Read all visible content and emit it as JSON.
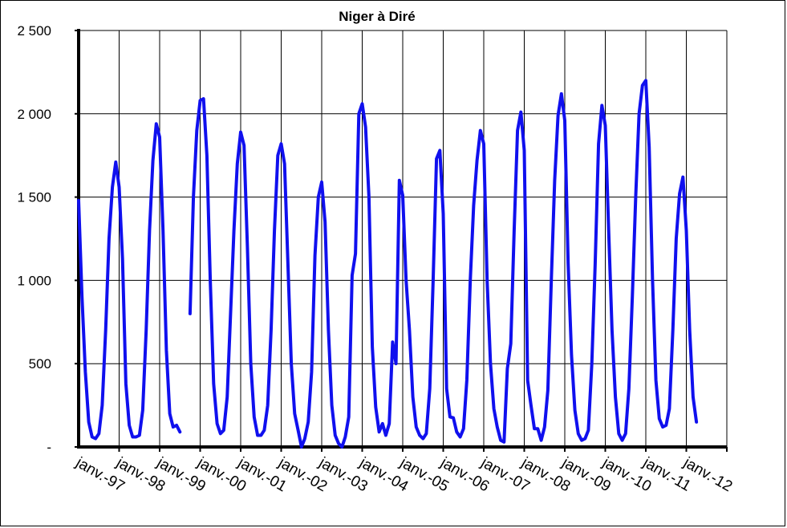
{
  "chart_data": {
    "type": "line",
    "title": "Niger à Diré",
    "xlabel": "",
    "ylabel": "",
    "ylim": [
      0,
      2500
    ],
    "yticks": [
      0,
      500,
      1000,
      1500,
      2000,
      2500
    ],
    "ytick_labels": [
      "-",
      "500",
      "1 000",
      "1 500",
      "2 000",
      "2 500"
    ],
    "x_domain_years": [
      1996,
      2012
    ],
    "xtick_labels": [
      "janv.-97",
      "janv.-98",
      "janv.-99",
      "janv.-00",
      "janv.-01",
      "janv.-02",
      "janv.-03",
      "janv.-04",
      "janv.-05",
      "janv.-06",
      "janv.-07",
      "janv.-08",
      "janv.-09",
      "janv.-10",
      "janv.-11",
      "janv.-12"
    ],
    "grid": true,
    "legend": "none",
    "series": [
      {
        "color": "#1010ee",
        "segments": [
          [
            [
              1996.0,
              1480
            ],
            [
              1996.083,
              900
            ],
            [
              1996.167,
              450
            ],
            [
              1996.25,
              150
            ],
            [
              1996.333,
              60
            ],
            [
              1996.417,
              50
            ],
            [
              1996.5,
              80
            ],
            [
              1996.583,
              250
            ],
            [
              1996.667,
              700
            ],
            [
              1996.75,
              1250
            ],
            [
              1996.833,
              1560
            ],
            [
              1996.917,
              1710
            ],
            [
              1997.0,
              1560
            ],
            [
              1997.083,
              1130
            ],
            [
              1997.167,
              380
            ],
            [
              1997.25,
              130
            ],
            [
              1997.333,
              60
            ],
            [
              1997.417,
              60
            ],
            [
              1997.5,
              70
            ],
            [
              1997.583,
              220
            ],
            [
              1997.667,
              700
            ],
            [
              1997.75,
              1300
            ],
            [
              1997.833,
              1720
            ],
            [
              1997.917,
              1940
            ],
            [
              1998.0,
              1860
            ],
            [
              1998.083,
              1300
            ],
            [
              1998.167,
              580
            ],
            [
              1998.25,
              200
            ],
            [
              1998.333,
              120
            ],
            [
              1998.417,
              130
            ],
            [
              1998.5,
              90
            ]
          ],
          [
            [
              1998.75,
              800
            ],
            [
              1998.833,
              1500
            ],
            [
              1998.917,
              1900
            ],
            [
              1999.0,
              2080
            ],
            [
              1999.083,
              2090
            ],
            [
              1999.167,
              1750
            ],
            [
              1999.25,
              1000
            ],
            [
              1999.333,
              380
            ],
            [
              1999.417,
              140
            ],
            [
              1999.5,
              80
            ],
            [
              1999.583,
              100
            ],
            [
              1999.667,
              300
            ],
            [
              1999.75,
              800
            ],
            [
              1999.833,
              1300
            ],
            [
              1999.917,
              1700
            ],
            [
              2000.0,
              1890
            ],
            [
              2000.083,
              1810
            ],
            [
              2000.167,
              1200
            ],
            [
              2000.25,
              500
            ],
            [
              2000.333,
              180
            ],
            [
              2000.417,
              70
            ],
            [
              2000.5,
              70
            ],
            [
              2000.583,
              100
            ],
            [
              2000.667,
              250
            ],
            [
              2000.75,
              700
            ],
            [
              2000.833,
              1300
            ],
            [
              2000.917,
              1750
            ],
            [
              2001.0,
              1820
            ],
            [
              2001.083,
              1700
            ],
            [
              2001.167,
              1100
            ],
            [
              2001.25,
              500
            ],
            [
              2001.333,
              200
            ],
            [
              2001.417,
              100
            ],
            [
              2001.5,
              0
            ],
            [
              2001.583,
              50
            ],
            [
              2001.667,
              150
            ],
            [
              2001.75,
              450
            ],
            [
              2001.833,
              1150
            ],
            [
              2001.917,
              1500
            ],
            [
              2002.0,
              1590
            ],
            [
              2002.083,
              1350
            ],
            [
              2002.167,
              700
            ],
            [
              2002.25,
              250
            ],
            [
              2002.333,
              70
            ],
            [
              2002.417,
              20
            ],
            [
              2002.5,
              0
            ],
            [
              2002.583,
              60
            ],
            [
              2002.667,
              180
            ],
            [
              2002.75,
              1030
            ],
            [
              2002.833,
              1160
            ],
            [
              2002.917,
              2000
            ],
            [
              2003.0,
              2060
            ],
            [
              2003.083,
              1920
            ],
            [
              2003.167,
              1500
            ],
            [
              2003.25,
              600
            ],
            [
              2003.333,
              240
            ],
            [
              2003.417,
              90
            ],
            [
              2003.5,
              140
            ],
            [
              2003.583,
              70
            ],
            [
              2003.667,
              140
            ],
            [
              2003.75,
              630
            ],
            [
              2003.833,
              500
            ],
            [
              2003.917,
              1600
            ],
            [
              2004.0,
              1510
            ],
            [
              2004.083,
              1000
            ],
            [
              2004.167,
              700
            ],
            [
              2004.25,
              300
            ],
            [
              2004.333,
              120
            ],
            [
              2004.417,
              70
            ],
            [
              2004.5,
              50
            ],
            [
              2004.583,
              80
            ],
            [
              2004.667,
              350
            ],
            [
              2004.75,
              1000
            ],
            [
              2004.833,
              1730
            ],
            [
              2004.917,
              1780
            ],
            [
              2005.0,
              1400
            ],
            [
              2005.083,
              350
            ],
            [
              2005.167,
              180
            ],
            [
              2005.25,
              175
            ],
            [
              2005.333,
              90
            ],
            [
              2005.417,
              60
            ],
            [
              2005.5,
              110
            ],
            [
              2005.583,
              400
            ],
            [
              2005.667,
              1000
            ],
            [
              2005.75,
              1450
            ],
            [
              2005.833,
              1720
            ],
            [
              2005.917,
              1900
            ],
            [
              2006.0,
              1820
            ],
            [
              2006.083,
              1000
            ],
            [
              2006.167,
              500
            ],
            [
              2006.25,
              230
            ],
            [
              2006.333,
              120
            ],
            [
              2006.417,
              40
            ],
            [
              2006.5,
              30
            ],
            [
              2006.583,
              470
            ],
            [
              2006.667,
              620
            ],
            [
              2006.75,
              1300
            ],
            [
              2006.833,
              1900
            ],
            [
              2006.917,
              2010
            ],
            [
              2007.0,
              1780
            ],
            [
              2007.083,
              400
            ],
            [
              2007.167,
              250
            ],
            [
              2007.25,
              110
            ],
            [
              2007.333,
              110
            ],
            [
              2007.417,
              40
            ],
            [
              2007.5,
              120
            ],
            [
              2007.583,
              340
            ],
            [
              2007.667,
              1000
            ],
            [
              2007.75,
              1600
            ],
            [
              2007.833,
              1990
            ],
            [
              2007.917,
              2120
            ],
            [
              2008.0,
              1960
            ],
            [
              2008.083,
              1100
            ],
            [
              2008.167,
              550
            ],
            [
              2008.25,
              220
            ],
            [
              2008.333,
              80
            ],
            [
              2008.417,
              40
            ],
            [
              2008.5,
              50
            ],
            [
              2008.583,
              100
            ],
            [
              2008.667,
              500
            ],
            [
              2008.75,
              1100
            ],
            [
              2008.833,
              1820
            ],
            [
              2008.917,
              2050
            ],
            [
              2009.0,
              1930
            ],
            [
              2009.083,
              1300
            ],
            [
              2009.167,
              700
            ],
            [
              2009.25,
              300
            ],
            [
              2009.333,
              80
            ],
            [
              2009.417,
              40
            ],
            [
              2009.5,
              80
            ],
            [
              2009.583,
              350
            ],
            [
              2009.667,
              900
            ],
            [
              2009.75,
              1500
            ],
            [
              2009.833,
              2000
            ],
            [
              2009.917,
              2170
            ],
            [
              2010.0,
              2200
            ],
            [
              2010.083,
              1800
            ],
            [
              2010.167,
              1000
            ],
            [
              2010.25,
              400
            ],
            [
              2010.333,
              170
            ],
            [
              2010.417,
              120
            ],
            [
              2010.5,
              130
            ],
            [
              2010.583,
              230
            ],
            [
              2010.667,
              700
            ],
            [
              2010.75,
              1250
            ],
            [
              2010.833,
              1520
            ],
            [
              2010.917,
              1620
            ],
            [
              2011.0,
              1300
            ],
            [
              2011.083,
              700
            ],
            [
              2011.167,
              300
            ],
            [
              2011.25,
              150
            ]
          ]
        ]
      }
    ]
  }
}
